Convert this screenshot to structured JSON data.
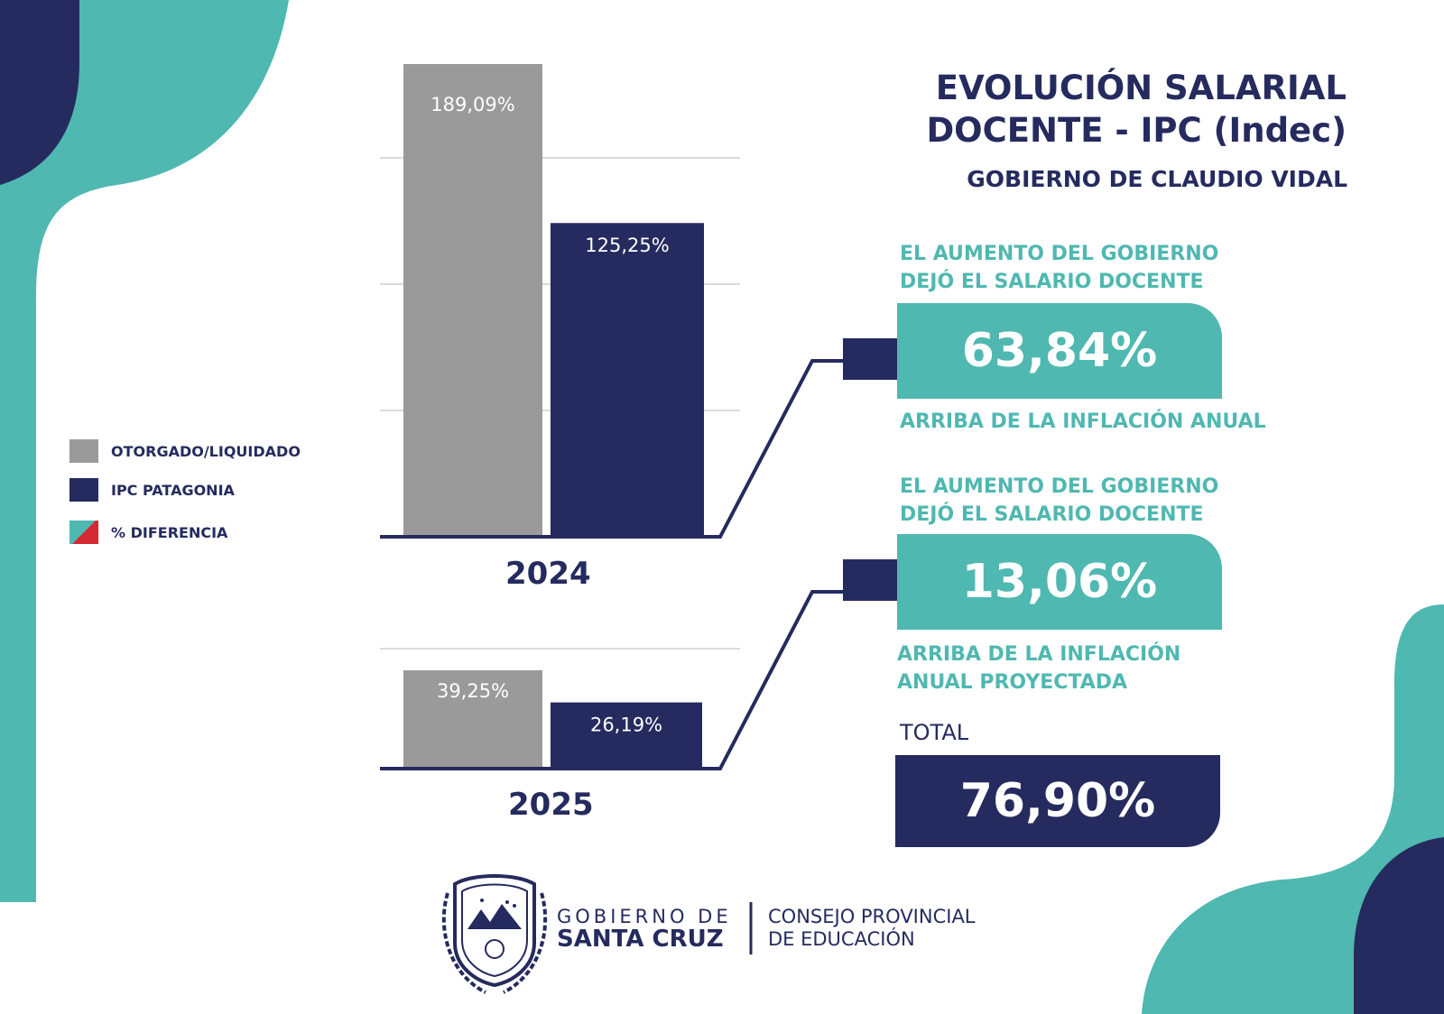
{
  "title": {
    "line1": "EVOLUCIÓN SALARIAL",
    "line2": "DOCENTE - IPC (Indec)",
    "subtitle": "GOBIERNO DE CLAUDIO VIDAL"
  },
  "legend": [
    {
      "label": "OTORGADO/LIQUIDADO",
      "color": "#9a9a9a"
    },
    {
      "label": "IPC PATAGONIA",
      "color": "#252b5e"
    },
    {
      "label": "% DIFERENCIA",
      "color": "#4fb8b1",
      "color2": "#d42a34"
    }
  ],
  "panels": [
    {
      "heading_line1": "EL AUMENTO DEL GOBIERNO",
      "heading_line2": "DEJÓ EL SALARIO DOCENTE",
      "value": "63,84%",
      "caption_line1": "ARRIBA DE LA INFLACIÓN ANUAL",
      "caption_line2": ""
    },
    {
      "heading_line1": "EL AUMENTO DEL GOBIERNO",
      "heading_line2": "DEJÓ EL SALARIO DOCENTE",
      "value": "13,06%",
      "caption_line1": "ARRIBA DE LA INFLACIÓN",
      "caption_line2": "ANUAL PROYECTADA"
    }
  ],
  "total": {
    "label": "TOTAL",
    "value": "76,90%"
  },
  "footer": {
    "gov_line1": "GOBIERNO DE",
    "gov_line2": "SANTA CRUZ",
    "council_line1": "CONSEJO PROVINCIAL",
    "council_line2": "DE EDUCACIÓN"
  },
  "colors": {
    "navy": "#252b5e",
    "teal": "#4fb8b1",
    "gray": "#9a9a9a",
    "red": "#d42a34"
  },
  "chart_data": [
    {
      "type": "bar",
      "categories": [
        "2024"
      ],
      "series": [
        {
          "name": "OTORGADO/LIQUIDADO",
          "values": [
            189.09
          ],
          "labels": [
            "189,09%"
          ]
        },
        {
          "name": "IPC PATAGONIA",
          "values": [
            125.25
          ],
          "labels": [
            "125,25%"
          ]
        }
      ],
      "difference": {
        "label": "63,84%",
        "value": 63.84
      },
      "ylim": [
        0,
        189.09
      ],
      "grid": true
    },
    {
      "type": "bar",
      "categories": [
        "2025"
      ],
      "series": [
        {
          "name": "OTORGADO/LIQUIDADO",
          "values": [
            39.25
          ],
          "labels": [
            "39,25%"
          ]
        },
        {
          "name": "IPC PATAGONIA",
          "values": [
            26.19
          ],
          "labels": [
            "26,19%"
          ]
        }
      ],
      "difference": {
        "label": "13,06%",
        "value": 13.06
      },
      "ylim": [
        0,
        39.25
      ],
      "grid": true
    }
  ]
}
